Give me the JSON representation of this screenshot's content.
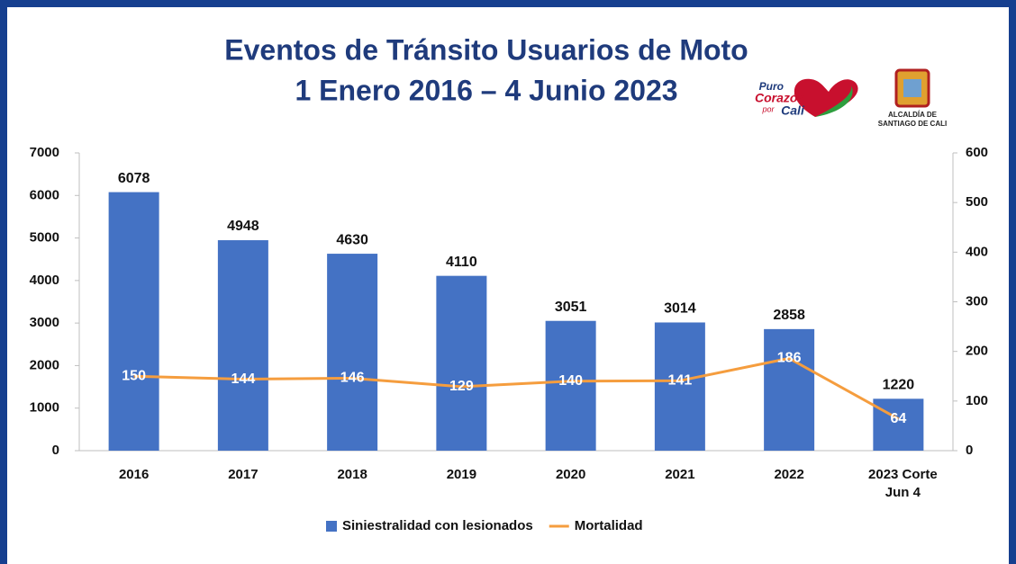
{
  "chart_data": {
    "type": "bar",
    "title": "Eventos de Tránsito Usuarios de Moto",
    "subtitle": "1 Enero 2016 – 4 Junio 2023",
    "categories": [
      "2016",
      "2017",
      "2018",
      "2019",
      "2020",
      "2021",
      "2022",
      "2023  Corte Jun 4"
    ],
    "series": [
      {
        "name": "Siniestralidad con lesionados",
        "type": "bar",
        "color": "#4472c4",
        "values": [
          6078,
          4948,
          4630,
          4110,
          3051,
          3014,
          2858,
          1220
        ]
      },
      {
        "name": "Mortalidad",
        "type": "line",
        "axis": "y2",
        "color": "#f59d3e",
        "values": [
          150,
          144,
          146,
          129,
          140,
          141,
          186,
          64
        ]
      }
    ],
    "ylim": [
      0,
      7000
    ],
    "yticks": [
      0,
      1000,
      2000,
      3000,
      4000,
      5000,
      6000,
      7000
    ],
    "y2lim": [
      0,
      600
    ],
    "y2ticks": [
      0,
      100,
      200,
      300,
      400,
      500,
      600
    ],
    "grid": false,
    "legend": "bottom"
  },
  "logos": {
    "puro": [
      "Puro",
      "Corazón",
      "por",
      "Cali"
    ],
    "alcaldia": [
      "ALCALDÍA DE",
      "SANTIAGO DE CALI"
    ]
  }
}
